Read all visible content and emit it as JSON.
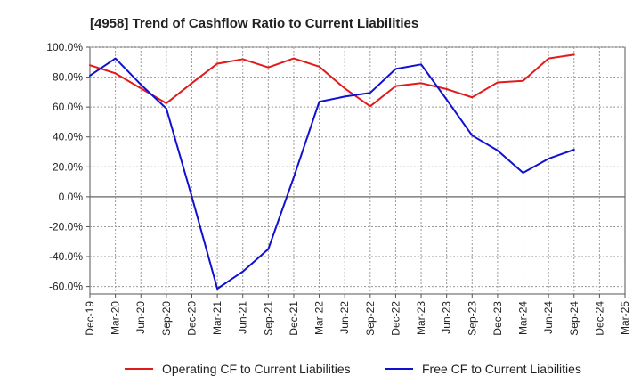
{
  "chart_data": {
    "type": "line",
    "title": "[4958]  Trend of Cashflow Ratio to Current Liabilities",
    "xlabel": "",
    "ylabel": "",
    "ylim": [
      -65,
      100
    ],
    "yticks": [
      100,
      80,
      60,
      40,
      20,
      0,
      -20,
      -40,
      -60
    ],
    "ytick_labels": [
      "100.0%",
      "80.0%",
      "60.0%",
      "40.0%",
      "20.0%",
      "0.0%",
      "-20.0%",
      "-40.0%",
      "-60.0%"
    ],
    "x_labels": [
      "Dec-19",
      "Mar-20",
      "Jun-20",
      "Sep-20",
      "Dec-20",
      "Mar-21",
      "Jun-21",
      "Sep-21",
      "Dec-21",
      "Mar-22",
      "Jun-22",
      "Sep-22",
      "Dec-22",
      "Mar-23",
      "Jun-23",
      "Sep-23",
      "Dec-23",
      "Mar-24",
      "Jun-24",
      "Sep-24",
      "Dec-24",
      "Mar-25"
    ],
    "grid": true,
    "legend_position": "bottom",
    "series": [
      {
        "name": "Operating CF to Current Liabilities",
        "color": "#e31a1c",
        "values": [
          88,
          82.5,
          72.5,
          62.5,
          76,
          89,
          92,
          86.5,
          92.5,
          87,
          72.5,
          60.5,
          74,
          76,
          72,
          66.5,
          76.5,
          77.5,
          92.5,
          95,
          null,
          null
        ]
      },
      {
        "name": "Free CF to Current Liabilities",
        "color": "#1010d0",
        "values": [
          81,
          92.5,
          75,
          59,
          0,
          -61.5,
          -50,
          -35,
          13,
          63.5,
          67,
          69.5,
          85.5,
          88.5,
          65,
          41,
          31,
          16,
          25.5,
          31.5,
          null,
          null
        ]
      }
    ]
  }
}
